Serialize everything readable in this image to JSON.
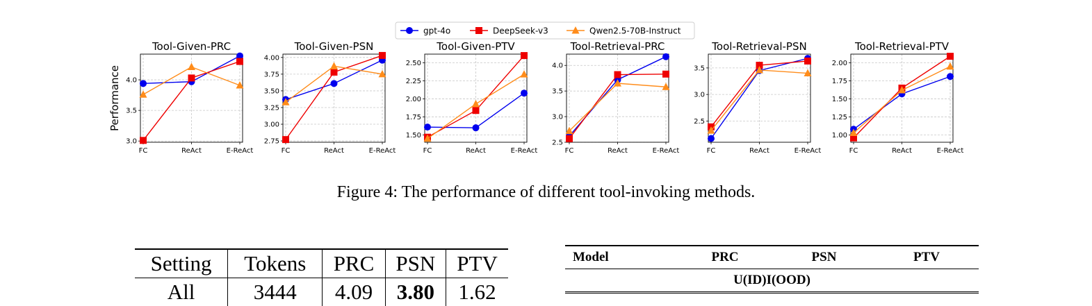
{
  "chart_data": [
    {
      "type": "line",
      "title": "Tool-Given-PRC",
      "ylabel": "Performance",
      "categories": [
        "FC",
        "ReAct",
        "E-ReAct"
      ],
      "ylim": [
        2.98,
        4.42
      ],
      "yticks": [
        3.0,
        3.5,
        4.0
      ],
      "ytick_labels": [
        "3.0",
        "3.5",
        "4.0"
      ],
      "series": [
        {
          "name": "gpt-4o",
          "values": [
            3.94,
            3.97,
            4.39
          ]
        },
        {
          "name": "DeepSeek-v3",
          "values": [
            3.01,
            4.03,
            4.3
          ]
        },
        {
          "name": "Qwen2.5-70B-Instruct",
          "values": [
            3.76,
            4.21,
            3.91
          ]
        }
      ]
    },
    {
      "type": "line",
      "title": "Tool-Given-PSN",
      "ylabel": "",
      "categories": [
        "FC",
        "ReAct",
        "E-ReAct"
      ],
      "ylim": [
        2.73,
        4.05
      ],
      "yticks": [
        2.75,
        3.0,
        3.25,
        3.5,
        3.75,
        4.0
      ],
      "ytick_labels": [
        "2.75",
        "3.00",
        "3.25",
        "3.50",
        "3.75",
        "4.00"
      ],
      "series": [
        {
          "name": "gpt-4o",
          "values": [
            3.37,
            3.61,
            3.96
          ]
        },
        {
          "name": "DeepSeek-v3",
          "values": [
            2.77,
            3.78,
            4.03
          ]
        },
        {
          "name": "Qwen2.5-70B-Instruct",
          "values": [
            3.33,
            3.87,
            3.75
          ]
        }
      ]
    },
    {
      "type": "line",
      "title": "Tool-Given-PTV",
      "ylabel": "",
      "categories": [
        "FC",
        "ReAct",
        "E-ReAct"
      ],
      "ylim": [
        1.4,
        2.62
      ],
      "yticks": [
        1.5,
        1.75,
        2.0,
        2.25,
        2.5
      ],
      "ytick_labels": [
        "1.50",
        "1.75",
        "2.00",
        "2.25",
        "2.50"
      ],
      "series": [
        {
          "name": "gpt-4o",
          "values": [
            1.61,
            1.6,
            2.08
          ]
        },
        {
          "name": "DeepSeek-v3",
          "values": [
            1.47,
            1.84,
            2.6
          ]
        },
        {
          "name": "Qwen2.5-70B-Instruct",
          "values": [
            1.45,
            1.93,
            2.34
          ]
        }
      ]
    },
    {
      "type": "line",
      "title": "Tool-Retrieval-PRC",
      "ylabel": "",
      "categories": [
        "FC",
        "ReAct",
        "E-ReAct"
      ],
      "ylim": [
        2.5,
        4.22
      ],
      "yticks": [
        2.5,
        3.0,
        3.5,
        4.0
      ],
      "ytick_labels": [
        "2.5",
        "3.0",
        "3.5",
        "4.0"
      ],
      "series": [
        {
          "name": "gpt-4o",
          "values": [
            2.62,
            3.72,
            4.17
          ]
        },
        {
          "name": "DeepSeek-v3",
          "values": [
            2.57,
            3.82,
            3.83
          ]
        },
        {
          "name": "Qwen2.5-70B-Instruct",
          "values": [
            2.72,
            3.65,
            3.58
          ]
        }
      ]
    },
    {
      "type": "line",
      "title": "Tool-Retrieval-PSN",
      "ylabel": "",
      "categories": [
        "FC",
        "ReAct",
        "E-ReAct"
      ],
      "ylim": [
        2.1,
        3.76
      ],
      "yticks": [
        2.5,
        3.0,
        3.5
      ],
      "ytick_labels": [
        "2.5",
        "3.0",
        "3.5"
      ],
      "series": [
        {
          "name": "gpt-4o",
          "values": [
            2.17,
            3.45,
            3.68
          ]
        },
        {
          "name": "DeepSeek-v3",
          "values": [
            2.39,
            3.55,
            3.63
          ]
        },
        {
          "name": "Qwen2.5-70B-Instruct",
          "values": [
            2.32,
            3.46,
            3.4
          ]
        }
      ]
    },
    {
      "type": "line",
      "title": "Tool-Retrieval-PTV",
      "ylabel": "",
      "categories": [
        "FC",
        "ReAct",
        "E-ReAct"
      ],
      "ylim": [
        0.9,
        2.12
      ],
      "yticks": [
        1.0,
        1.25,
        1.5,
        1.75,
        2.0
      ],
      "ytick_labels": [
        "1.00",
        "1.25",
        "1.50",
        "1.75",
        "2.00"
      ],
      "series": [
        {
          "name": "gpt-4o",
          "values": [
            1.08,
            1.57,
            1.81
          ]
        },
        {
          "name": "DeepSeek-v3",
          "values": [
            0.96,
            1.65,
            2.09
          ]
        },
        {
          "name": "Qwen2.5-70B-Instruct",
          "values": [
            1.03,
            1.62,
            1.95
          ]
        }
      ]
    }
  ],
  "legend": [
    {
      "name": "gpt-4o",
      "color": "#0000ee",
      "marker": "circle"
    },
    {
      "name": "DeepSeek-v3",
      "color": "#ee0000",
      "marker": "square"
    },
    {
      "name": "Qwen2.5-70B-Instruct",
      "color": "#ff8c1a",
      "marker": "triangle"
    }
  ],
  "caption": "Figure 4: The performance of different tool-invoking methods.",
  "table1": {
    "headers": [
      "Setting",
      "Tokens",
      "PRC",
      "PSN",
      "PTV"
    ],
    "row": [
      "All",
      "3444",
      "4.09",
      "3.80",
      "1.62"
    ]
  },
  "table2": {
    "headers": [
      "Model",
      "PRC",
      "PSN",
      "PTV"
    ],
    "group_label": "U(ID)I(OOD)"
  }
}
